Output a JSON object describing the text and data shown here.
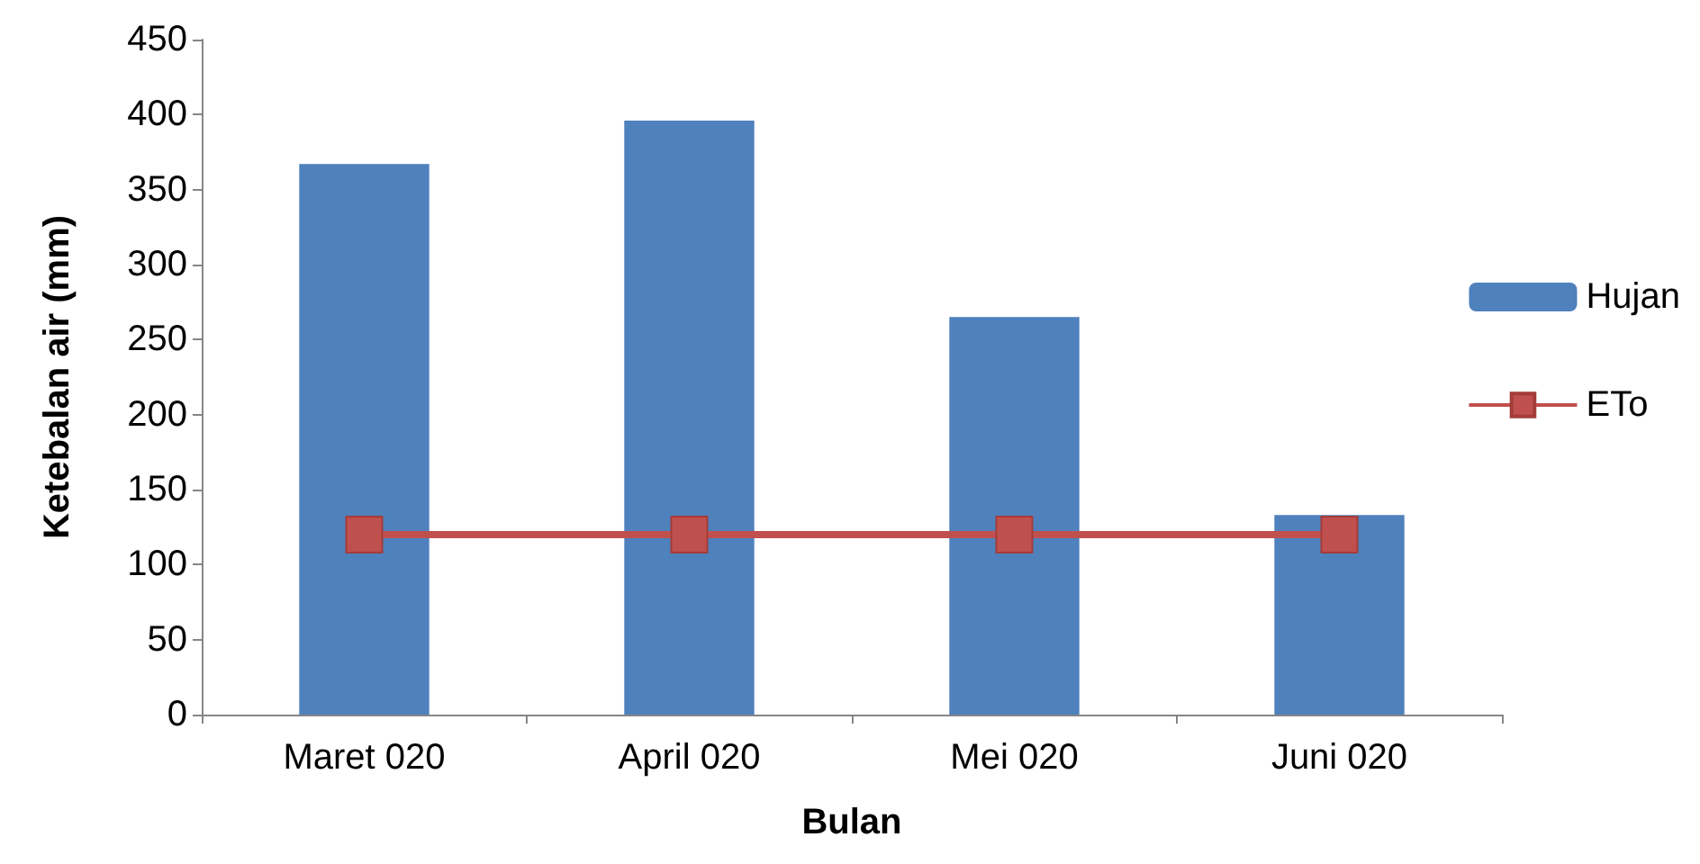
{
  "chart_data": {
    "type": "bar",
    "xlabel": "Bulan",
    "ylabel": "Ketebalan air (mm)",
    "categories": [
      "Maret 020",
      "April 020",
      "Mei 020",
      "Juni 020"
    ],
    "series": [
      {
        "name": "Hujan",
        "color": "#4f81bd",
        "values": [
          367,
          396,
          265,
          133
        ]
      },
      {
        "name": "ETo",
        "type": "line",
        "color": "#c0504d",
        "values": [
          120,
          120,
          120,
          120
        ],
        "marker": "square"
      }
    ],
    "ylim": [
      0,
      450
    ],
    "yticks": [
      0,
      50,
      100,
      150,
      200,
      250,
      300,
      350,
      400,
      450
    ],
    "grid": false,
    "legend": "right"
  }
}
